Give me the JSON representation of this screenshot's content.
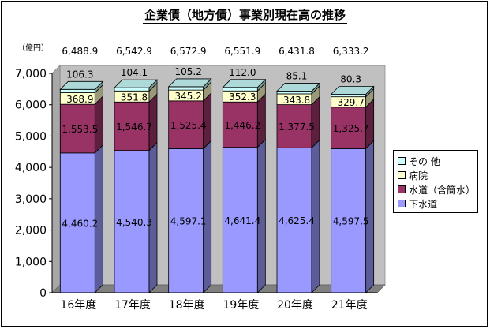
{
  "title": "企業債（地方債）事業別現在高の推移",
  "unit_label": "（億円）",
  "chart_data": {
    "type": "bar",
    "stacked": true,
    "three_d": true,
    "categories": [
      "16年度",
      "17年度",
      "18年度",
      "19年度",
      "20年度",
      "21年度"
    ],
    "series": [
      {
        "name": "下水道",
        "color": "#9999ff",
        "values": [
          4460.2,
          4540.3,
          4597.1,
          4641.4,
          4625.4,
          4597.5
        ],
        "labels": [
          "4,460.2",
          "4,540.3",
          "4,597.1",
          "4,641.4",
          "4,625.4",
          "4,597.5"
        ]
      },
      {
        "name": "水道（含簡水）",
        "color": "#993366",
        "values": [
          1553.5,
          1546.7,
          1525.4,
          1446.2,
          1377.5,
          1325.7
        ],
        "labels": [
          "1,553.5",
          "1,546.7",
          "1,525.4",
          "1,446.2",
          "1,377.5",
          "1,325.7"
        ]
      },
      {
        "name": "病院",
        "color": "#ffffcc",
        "values": [
          368.9,
          351.8,
          345.2,
          352.3,
          343.8,
          329.7
        ],
        "labels": [
          "368.9",
          "351.8",
          "345.2",
          "352.3",
          "343.8",
          "329.7"
        ]
      },
      {
        "name": "その 他",
        "color": "#ccffff",
        "values": [
          106.3,
          104.1,
          105.2,
          112.0,
          85.1,
          80.3
        ],
        "labels": [
          "106.3",
          "104.1",
          "105.2",
          "112.0",
          "85.1",
          "80.3"
        ]
      }
    ],
    "totals": [
      "6,488.9",
      "6,542.9",
      "6,572.9",
      "6,551.9",
      "6,431.8",
      "6,333.2"
    ],
    "y_ticks": [
      "0",
      "1,000",
      "2,000",
      "3,000",
      "4,000",
      "5,000",
      "6,000",
      "7,000"
    ],
    "ylim": [
      0,
      7000
    ],
    "grid": false,
    "legend_position": "right",
    "legend_order": [
      "その 他",
      "病院",
      "水道（含簡水）",
      "下水道"
    ]
  }
}
